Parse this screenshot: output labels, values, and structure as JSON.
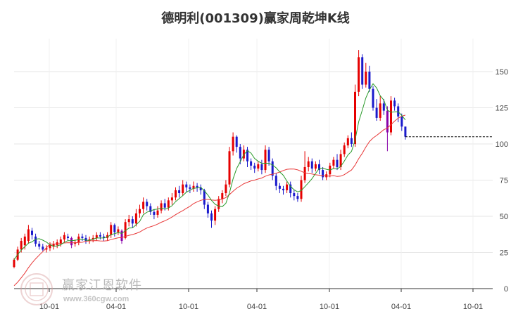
{
  "chart_data": {
    "type": "candlestick",
    "title": "德明利(001309)赢家周乾坤K线",
    "xlabel": "",
    "ylabel": "",
    "ylim": [
      0,
      170
    ],
    "y_ticks": [
      0,
      25,
      50,
      75,
      100,
      125,
      150
    ],
    "x_tick_labels": [
      "10-01",
      "04-01",
      "10-01",
      "04-01",
      "10-01",
      "04-01",
      "10-01"
    ],
    "grid": true,
    "last_price": 105,
    "colors": {
      "up": "#e60000",
      "down": "#1a1acc",
      "special": "#8800aa",
      "ma_short": "#2a9a2a",
      "ma_long": "#e83a3a",
      "grid": "#e6e6e6",
      "reference_line": "#000000"
    },
    "candles": [
      [
        15,
        20,
        14,
        21
      ],
      [
        20,
        27,
        19,
        29
      ],
      [
        27,
        33,
        25,
        35
      ],
      [
        30,
        36,
        27,
        38
      ],
      [
        33,
        41,
        31,
        44
      ],
      [
        40,
        37,
        34,
        42
      ],
      [
        36,
        31,
        29,
        38
      ],
      [
        31,
        29,
        27,
        33
      ],
      [
        29,
        27,
        26,
        31
      ],
      [
        27,
        28,
        25,
        30
      ],
      [
        28,
        30,
        26,
        32
      ],
      [
        29,
        31,
        27,
        33
      ],
      [
        30,
        32,
        28,
        34
      ],
      [
        31,
        34,
        29,
        36
      ],
      [
        34,
        37,
        32,
        39
      ],
      [
        36,
        35,
        33,
        38
      ],
      [
        35,
        30,
        28,
        36
      ],
      [
        31,
        32,
        29,
        34
      ],
      [
        32,
        36,
        30,
        38
      ],
      [
        36,
        35,
        33,
        38
      ],
      [
        35,
        33,
        31,
        37
      ],
      [
        33,
        34,
        31,
        36
      ],
      [
        34,
        35,
        32,
        37
      ],
      [
        35,
        37,
        33,
        39
      ],
      [
        37,
        36,
        34,
        39
      ],
      [
        36,
        35,
        33,
        38
      ],
      [
        35,
        37,
        33,
        39
      ],
      [
        37,
        44,
        35,
        46
      ],
      [
        44,
        39,
        36,
        45
      ],
      [
        39,
        41,
        37,
        43
      ],
      [
        40,
        33,
        31,
        41
      ],
      [
        35,
        46,
        34,
        48
      ],
      [
        46,
        48,
        43,
        51
      ],
      [
        48,
        45,
        42,
        50
      ],
      [
        45,
        52,
        43,
        55
      ],
      [
        52,
        55,
        49,
        58
      ],
      [
        55,
        60,
        52,
        63
      ],
      [
        60,
        57,
        54,
        62
      ],
      [
        57,
        53,
        51,
        59
      ],
      [
        53,
        51,
        48,
        55
      ],
      [
        51,
        54,
        49,
        57
      ],
      [
        54,
        59,
        52,
        61
      ],
      [
        59,
        56,
        54,
        62
      ],
      [
        56,
        61,
        54,
        63
      ],
      [
        61,
        63,
        58,
        66
      ],
      [
        63,
        68,
        61,
        70
      ],
      [
        68,
        66,
        63,
        71
      ],
      [
        66,
        72,
        64,
        75
      ],
      [
        72,
        70,
        67,
        74
      ],
      [
        70,
        69,
        66,
        72
      ],
      [
        69,
        71,
        67,
        74
      ],
      [
        71,
        70,
        67,
        73
      ],
      [
        70,
        68,
        65,
        72
      ],
      [
        68,
        58,
        55,
        69
      ],
      [
        58,
        52,
        49,
        60
      ],
      [
        52,
        47,
        42,
        54
      ],
      [
        47,
        55,
        44,
        57
      ],
      [
        55,
        62,
        53,
        64
      ],
      [
        62,
        66,
        59,
        68
      ],
      [
        66,
        72,
        64,
        75
      ],
      [
        72,
        95,
        70,
        98
      ],
      [
        95,
        105,
        92,
        108
      ],
      [
        105,
        98,
        94,
        106
      ],
      [
        98,
        90,
        86,
        100
      ],
      [
        90,
        96,
        88,
        99
      ],
      [
        96,
        88,
        84,
        98
      ],
      [
        88,
        85,
        82,
        90
      ],
      [
        85,
        83,
        80,
        87
      ],
      [
        83,
        86,
        81,
        88
      ],
      [
        86,
        82,
        79,
        89
      ],
      [
        82,
        96,
        80,
        99
      ],
      [
        96,
        88,
        85,
        98
      ],
      [
        88,
        78,
        75,
        90
      ],
      [
        78,
        71,
        68,
        80
      ],
      [
        71,
        69,
        66,
        73
      ],
      [
        69,
        68,
        65,
        71
      ],
      [
        68,
        72,
        66,
        74
      ],
      [
        72,
        66,
        63,
        74
      ],
      [
        66,
        64,
        61,
        68
      ],
      [
        64,
        62,
        60,
        66
      ],
      [
        62,
        75,
        60,
        78
      ],
      [
        75,
        84,
        73,
        95
      ],
      [
        84,
        88,
        81,
        91
      ],
      [
        88,
        83,
        80,
        90
      ],
      [
        83,
        86,
        81,
        88
      ],
      [
        86,
        82,
        79,
        89
      ],
      [
        82,
        77,
        75,
        84
      ],
      [
        77,
        79,
        75,
        81
      ],
      [
        79,
        85,
        77,
        87
      ],
      [
        85,
        89,
        83,
        91
      ],
      [
        89,
        84,
        82,
        93
      ],
      [
        84,
        93,
        82,
        96
      ],
      [
        93,
        99,
        91,
        101
      ],
      [
        99,
        104,
        97,
        106
      ],
      [
        104,
        100,
        98,
        108
      ],
      [
        100,
        136,
        98,
        141
      ],
      [
        136,
        160,
        133,
        165
      ],
      [
        160,
        141,
        138,
        162
      ],
      [
        141,
        150,
        139,
        156
      ],
      [
        150,
        138,
        136,
        154
      ],
      [
        138,
        125,
        123,
        140
      ],
      [
        125,
        118,
        116,
        131
      ],
      [
        118,
        128,
        116,
        133
      ],
      [
        128,
        123,
        120,
        131
      ],
      [
        123,
        108,
        95,
        126
      ],
      [
        108,
        130,
        106,
        133
      ],
      [
        130,
        126,
        123,
        132
      ],
      [
        126,
        119,
        115,
        128
      ],
      [
        119,
        112,
        109,
        121
      ],
      [
        112,
        105,
        103,
        112
      ]
    ]
  }
}
